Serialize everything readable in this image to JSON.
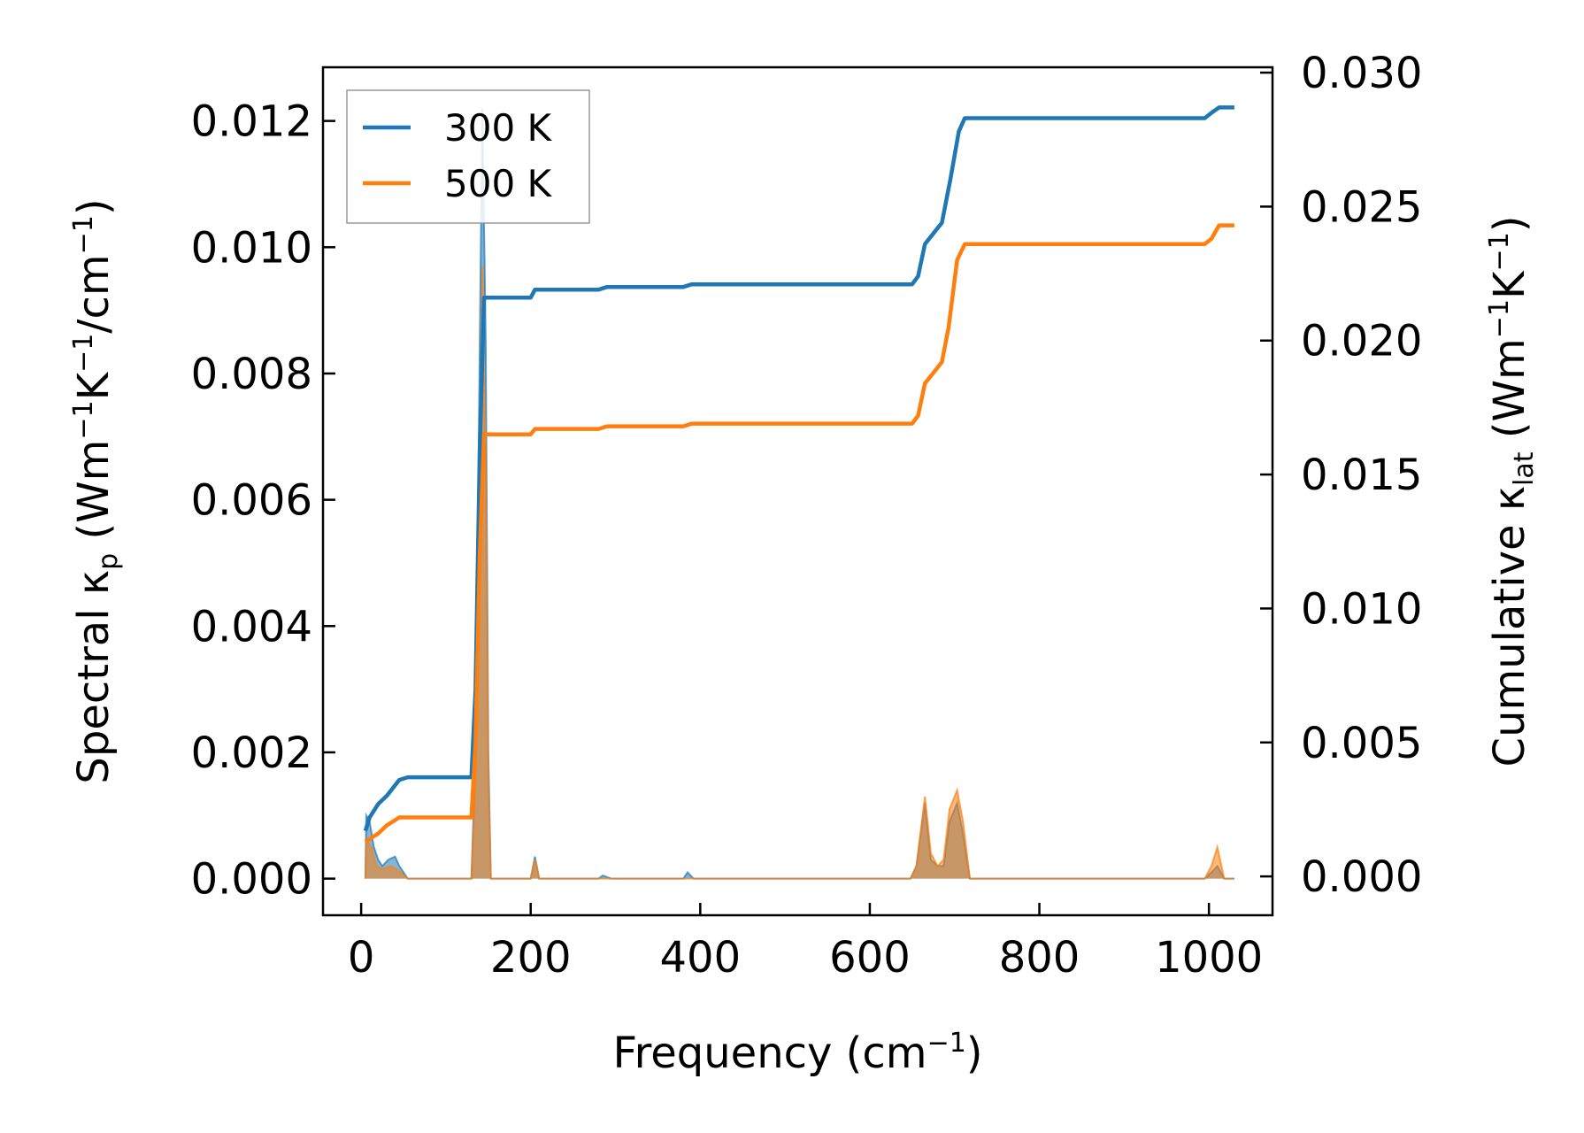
{
  "chart_data": {
    "type": "line",
    "xlabel": {
      "text": "Frequency (cm",
      "sup": "−1",
      "tail": ")"
    },
    "ylabel_left": {
      "pre": "Spectral κ",
      "sub": "p",
      "mid1": " (Wm",
      "sup1": "−1",
      "mid2": "K",
      "sup2": "−1",
      "mid3": "/cm",
      "sup3": "−1",
      "tail": ")"
    },
    "ylabel_right": {
      "pre": "Cumulative κ",
      "sub": "lat",
      "mid1": " (Wm",
      "sup1": "−1",
      "mid2": "K",
      "sup2": "−1",
      "tail": ")"
    },
    "xlim": [
      -45,
      1075
    ],
    "ylim_left": [
      -0.00058,
      0.01285
    ],
    "ylim_right": [
      -0.00145,
      0.0302
    ],
    "xticks": [
      0,
      200,
      400,
      600,
      800,
      1000
    ],
    "xtick_labels": [
      "0",
      "200",
      "400",
      "600",
      "800",
      "1000"
    ],
    "yticks_left": [
      0.0,
      0.002,
      0.004,
      0.006,
      0.008,
      0.01,
      0.012
    ],
    "ytick_left_labels": [
      "0.000",
      "0.002",
      "0.004",
      "0.006",
      "0.008",
      "0.010",
      "0.012"
    ],
    "yticks_right": [
      0.0,
      0.005,
      0.01,
      0.015,
      0.02,
      0.025,
      0.03
    ],
    "ytick_right_labels": [
      "0.000",
      "0.005",
      "0.010",
      "0.015",
      "0.020",
      "0.025",
      "0.030"
    ],
    "legend_position": "upper-left",
    "series": [
      {
        "name": "300 K",
        "color": "#1f77b4",
        "cumulative": [
          [
            5,
            0.0017
          ],
          [
            10,
            0.0022
          ],
          [
            20,
            0.0027
          ],
          [
            30,
            0.003
          ],
          [
            40,
            0.0034
          ],
          [
            45,
            0.0036
          ],
          [
            55,
            0.0037
          ],
          [
            130,
            0.0037
          ],
          [
            135,
            0.007
          ],
          [
            140,
            0.016
          ],
          [
            145,
            0.0216
          ],
          [
            175,
            0.0216
          ],
          [
            200,
            0.0216
          ],
          [
            205,
            0.0219
          ],
          [
            280,
            0.0219
          ],
          [
            290,
            0.022
          ],
          [
            380,
            0.022
          ],
          [
            390,
            0.0221
          ],
          [
            650,
            0.0221
          ],
          [
            657,
            0.0224
          ],
          [
            665,
            0.0236
          ],
          [
            675,
            0.024
          ],
          [
            685,
            0.0244
          ],
          [
            695,
            0.026
          ],
          [
            705,
            0.0278
          ],
          [
            712,
            0.0283
          ],
          [
            995,
            0.0283
          ],
          [
            1003,
            0.0285
          ],
          [
            1012,
            0.0287
          ],
          [
            1030,
            0.0287
          ]
        ],
        "spectral": [
          [
            5,
            0.0
          ],
          [
            6,
            0.001
          ],
          [
            10,
            0.0009
          ],
          [
            15,
            0.0005
          ],
          [
            20,
            0.0003
          ],
          [
            25,
            0.0002
          ],
          [
            32,
            0.0003
          ],
          [
            40,
            0.00035
          ],
          [
            45,
            0.0002
          ],
          [
            55,
            0.0
          ],
          [
            125,
            0.0
          ],
          [
            130,
            0.0
          ],
          [
            135,
            0.002
          ],
          [
            140,
            0.0085
          ],
          [
            143,
            0.0122
          ],
          [
            147,
            0.0085
          ],
          [
            150,
            0.002
          ],
          [
            153,
            0.0
          ],
          [
            200,
            0.0
          ],
          [
            205,
            0.00035
          ],
          [
            210,
            0.0
          ],
          [
            280,
            0.0
          ],
          [
            285,
            5e-05
          ],
          [
            295,
            0.0
          ],
          [
            380,
            0.0
          ],
          [
            385,
            0.0001
          ],
          [
            392,
            0.0
          ],
          [
            648,
            0.0
          ],
          [
            655,
            0.0002
          ],
          [
            665,
            0.0012
          ],
          [
            672,
            0.0003
          ],
          [
            680,
            0.0002
          ],
          [
            687,
            0.0002
          ],
          [
            694,
            0.0009
          ],
          [
            703,
            0.0012
          ],
          [
            710,
            0.0007
          ],
          [
            718,
            0.0
          ],
          [
            995,
            0.0
          ],
          [
            1003,
            0.0001
          ],
          [
            1010,
            0.0002
          ],
          [
            1018,
            0.0
          ],
          [
            1030,
            0.0
          ]
        ]
      },
      {
        "name": "500 K",
        "color": "#ff7f0e",
        "cumulative": [
          [
            5,
            0.0013
          ],
          [
            20,
            0.0016
          ],
          [
            30,
            0.0019
          ],
          [
            45,
            0.0022
          ],
          [
            55,
            0.0022
          ],
          [
            130,
            0.0022
          ],
          [
            135,
            0.005
          ],
          [
            140,
            0.012
          ],
          [
            145,
            0.0165
          ],
          [
            175,
            0.0165
          ],
          [
            200,
            0.0165
          ],
          [
            205,
            0.0167
          ],
          [
            280,
            0.0167
          ],
          [
            290,
            0.0168
          ],
          [
            380,
            0.0168
          ],
          [
            390,
            0.0169
          ],
          [
            650,
            0.0169
          ],
          [
            657,
            0.0172
          ],
          [
            665,
            0.0184
          ],
          [
            675,
            0.0188
          ],
          [
            685,
            0.0192
          ],
          [
            693,
            0.0205
          ],
          [
            703,
            0.023
          ],
          [
            712,
            0.0236
          ],
          [
            995,
            0.0236
          ],
          [
            1003,
            0.0238
          ],
          [
            1012,
            0.0243
          ],
          [
            1030,
            0.0243
          ]
        ],
        "spectral": [
          [
            5,
            0.0
          ],
          [
            6,
            0.0006
          ],
          [
            12,
            0.0005
          ],
          [
            18,
            0.0002
          ],
          [
            25,
            0.00015
          ],
          [
            35,
            0.0002
          ],
          [
            42,
            0.00015
          ],
          [
            55,
            0.0
          ],
          [
            125,
            0.0
          ],
          [
            130,
            0.0
          ],
          [
            135,
            0.0015
          ],
          [
            140,
            0.0065
          ],
          [
            143,
            0.0097
          ],
          [
            147,
            0.0065
          ],
          [
            150,
            0.0015
          ],
          [
            153,
            0.0
          ],
          [
            200,
            0.0
          ],
          [
            205,
            0.0003
          ],
          [
            210,
            0.0
          ],
          [
            648,
            0.0
          ],
          [
            655,
            0.0002
          ],
          [
            665,
            0.0013
          ],
          [
            672,
            0.0004
          ],
          [
            680,
            0.0002
          ],
          [
            687,
            0.0003
          ],
          [
            694,
            0.0011
          ],
          [
            703,
            0.0014
          ],
          [
            710,
            0.0009
          ],
          [
            718,
            0.0
          ],
          [
            995,
            0.0
          ],
          [
            1003,
            0.0002
          ],
          [
            1010,
            0.0005
          ],
          [
            1018,
            0.0
          ],
          [
            1030,
            0.0
          ]
        ]
      }
    ]
  }
}
